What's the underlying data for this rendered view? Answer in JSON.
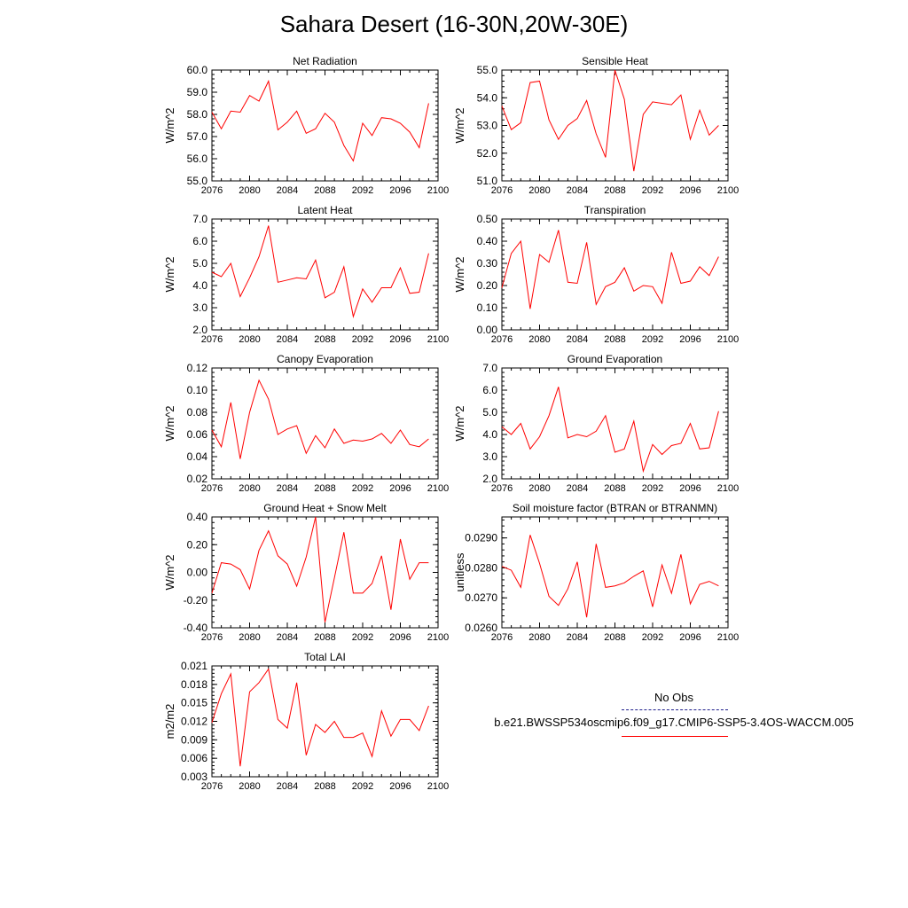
{
  "title": "Sahara Desert (16-30N,20W-30E)",
  "legend": {
    "obs_label": "No Obs",
    "model_label": "b.e21.BWSSP534oscmip6.f09_g17.CMIP6-SSP5-3.4OS-WACCM.005",
    "obs_color": "#1f1f8c",
    "model_color": "#ff0000"
  },
  "chart_data": [
    {
      "type": "line",
      "title": "Net Radiation",
      "ylabel": "W/m^2",
      "xlim": [
        2076,
        2100
      ],
      "ylim": [
        55.0,
        60.0
      ],
      "xticks": [
        "2076",
        "2080",
        "2084",
        "2088",
        "2092",
        "2096",
        "2100"
      ],
      "yticks": [
        "55.0",
        "56.0",
        "57.0",
        "58.0",
        "59.0",
        "60.0"
      ],
      "x": [
        2076,
        2077,
        2078,
        2079,
        2080,
        2081,
        2082,
        2083,
        2084,
        2085,
        2086,
        2087,
        2088,
        2089,
        2090,
        2091,
        2092,
        2093,
        2094,
        2095,
        2096,
        2097,
        2098,
        2099
      ],
      "series": [
        {
          "values": [
            58.1,
            57.35,
            58.15,
            58.1,
            58.85,
            58.6,
            59.5,
            57.3,
            57.65,
            58.15,
            57.15,
            57.35,
            58.05,
            57.65,
            56.6,
            55.9,
            57.6,
            57.05,
            57.85,
            57.8,
            57.6,
            57.2,
            56.5,
            58.5
          ]
        }
      ]
    },
    {
      "type": "line",
      "title": "Sensible Heat",
      "ylabel": "W/m^2",
      "xlim": [
        2076,
        2100
      ],
      "ylim": [
        51.0,
        55.0
      ],
      "xticks": [
        "2076",
        "2080",
        "2084",
        "2088",
        "2092",
        "2096",
        "2100"
      ],
      "yticks": [
        "51.0",
        "52.0",
        "53.0",
        "54.0",
        "55.0"
      ],
      "x": [
        2076,
        2077,
        2078,
        2079,
        2080,
        2081,
        2082,
        2083,
        2084,
        2085,
        2086,
        2087,
        2088,
        2089,
        2090,
        2091,
        2092,
        2093,
        2094,
        2095,
        2096,
        2097,
        2098,
        2099
      ],
      "series": [
        {
          "values": [
            53.7,
            52.85,
            53.1,
            54.55,
            54.6,
            53.2,
            52.5,
            53.0,
            53.25,
            53.9,
            52.7,
            51.85,
            55.0,
            53.95,
            51.35,
            53.4,
            53.85,
            53.8,
            53.75,
            54.1,
            52.5,
            53.55,
            52.65,
            53.0
          ]
        }
      ]
    },
    {
      "type": "line",
      "title": "Latent Heat",
      "ylabel": "W/m^2",
      "xlim": [
        2076,
        2100
      ],
      "ylim": [
        2.0,
        7.0
      ],
      "xticks": [
        "2076",
        "2080",
        "2084",
        "2088",
        "2092",
        "2096",
        "2100"
      ],
      "yticks": [
        "2.0",
        "3.0",
        "4.0",
        "5.0",
        "6.0",
        "7.0"
      ],
      "x": [
        2076,
        2077,
        2078,
        2079,
        2080,
        2081,
        2082,
        2083,
        2084,
        2085,
        2086,
        2087,
        2088,
        2089,
        2090,
        2091,
        2092,
        2093,
        2094,
        2095,
        2096,
        2097,
        2098,
        2099
      ],
      "series": [
        {
          "values": [
            4.6,
            4.4,
            5.0,
            3.5,
            4.35,
            5.3,
            6.7,
            4.15,
            4.25,
            4.35,
            4.3,
            5.15,
            3.45,
            3.7,
            4.85,
            2.6,
            3.85,
            3.25,
            3.9,
            3.9,
            4.8,
            3.65,
            3.7,
            5.45
          ]
        }
      ]
    },
    {
      "type": "line",
      "title": "Transpiration",
      "ylabel": "W/m^2",
      "xlim": [
        2076,
        2100
      ],
      "ylim": [
        0.0,
        0.5
      ],
      "xticks": [
        "2076",
        "2080",
        "2084",
        "2088",
        "2092",
        "2096",
        "2100"
      ],
      "yticks": [
        "0.00",
        "0.10",
        "0.20",
        "0.30",
        "0.40",
        "0.50"
      ],
      "x": [
        2076,
        2077,
        2078,
        2079,
        2080,
        2081,
        2082,
        2083,
        2084,
        2085,
        2086,
        2087,
        2088,
        2089,
        2090,
        2091,
        2092,
        2093,
        2094,
        2095,
        2096,
        2097,
        2098,
        2099
      ],
      "series": [
        {
          "values": [
            0.19,
            0.345,
            0.4,
            0.095,
            0.34,
            0.305,
            0.45,
            0.215,
            0.21,
            0.395,
            0.115,
            0.195,
            0.215,
            0.28,
            0.175,
            0.2,
            0.195,
            0.12,
            0.35,
            0.21,
            0.22,
            0.285,
            0.245,
            0.33
          ]
        }
      ]
    },
    {
      "type": "line",
      "title": "Canopy Evaporation",
      "ylabel": "W/m^2",
      "xlim": [
        2076,
        2100
      ],
      "ylim": [
        0.02,
        0.12
      ],
      "xticks": [
        "2076",
        "2080",
        "2084",
        "2088",
        "2092",
        "2096",
        "2100"
      ],
      "yticks": [
        "0.02",
        "0.04",
        "0.06",
        "0.08",
        "0.10",
        "0.12"
      ],
      "x": [
        2076,
        2077,
        2078,
        2079,
        2080,
        2081,
        2082,
        2083,
        2084,
        2085,
        2086,
        2087,
        2088,
        2089,
        2090,
        2091,
        2092,
        2093,
        2094,
        2095,
        2096,
        2097,
        2098,
        2099
      ],
      "series": [
        {
          "values": [
            0.064,
            0.049,
            0.089,
            0.038,
            0.08,
            0.109,
            0.092,
            0.06,
            0.065,
            0.068,
            0.043,
            0.059,
            0.048,
            0.065,
            0.052,
            0.055,
            0.054,
            0.056,
            0.061,
            0.052,
            0.064,
            0.051,
            0.049,
            0.056
          ]
        }
      ]
    },
    {
      "type": "line",
      "title": "Ground Evaporation",
      "ylabel": "W/m^2",
      "xlim": [
        2076,
        2100
      ],
      "ylim": [
        2.0,
        7.0
      ],
      "xticks": [
        "2076",
        "2080",
        "2084",
        "2088",
        "2092",
        "2096",
        "2100"
      ],
      "yticks": [
        "2.0",
        "3.0",
        "4.0",
        "5.0",
        "6.0",
        "7.0"
      ],
      "x": [
        2076,
        2077,
        2078,
        2079,
        2080,
        2081,
        2082,
        2083,
        2084,
        2085,
        2086,
        2087,
        2088,
        2089,
        2090,
        2091,
        2092,
        2093,
        2094,
        2095,
        2096,
        2097,
        2098,
        2099
      ],
      "series": [
        {
          "values": [
            4.35,
            4.0,
            4.5,
            3.35,
            3.9,
            4.85,
            6.15,
            3.85,
            4.0,
            3.9,
            4.15,
            4.85,
            3.2,
            3.35,
            4.6,
            2.35,
            3.55,
            3.1,
            3.5,
            3.6,
            4.5,
            3.35,
            3.4,
            5.05
          ]
        }
      ]
    },
    {
      "type": "line",
      "title": "Ground Heat + Snow Melt",
      "ylabel": "W/m^2",
      "xlim": [
        2076,
        2100
      ],
      "ylim": [
        -0.4,
        0.4
      ],
      "xticks": [
        "2076",
        "2080",
        "2084",
        "2088",
        "2092",
        "2096",
        "2100"
      ],
      "yticks": [
        "-0.40",
        "-0.20",
        "0.00",
        "0.20",
        "0.40"
      ],
      "x": [
        2076,
        2077,
        2078,
        2079,
        2080,
        2081,
        2082,
        2083,
        2084,
        2085,
        2086,
        2087,
        2088,
        2089,
        2090,
        2091,
        2092,
        2093,
        2094,
        2095,
        2096,
        2097,
        2098,
        2099
      ],
      "series": [
        {
          "values": [
            -0.15,
            0.07,
            0.06,
            0.02,
            -0.12,
            0.16,
            0.3,
            0.12,
            0.06,
            -0.1,
            0.11,
            0.4,
            -0.36,
            -0.04,
            0.29,
            -0.15,
            -0.15,
            -0.08,
            0.12,
            -0.27,
            0.24,
            -0.05,
            0.07,
            0.07
          ]
        }
      ]
    },
    {
      "type": "line",
      "title": "Soil moisture factor (BTRAN or BTRANMN)",
      "ylabel": "unitless",
      "xlim": [
        2076,
        2100
      ],
      "ylim": [
        0.026,
        0.0297
      ],
      "xticks": [
        "2076",
        "2080",
        "2084",
        "2088",
        "2092",
        "2096",
        "2100"
      ],
      "yticks": [
        "0.0260",
        "0.0270",
        "0.0280",
        "0.0290"
      ],
      "x": [
        2076,
        2077,
        2078,
        2079,
        2080,
        2081,
        2082,
        2083,
        2084,
        2085,
        2086,
        2087,
        2088,
        2089,
        2090,
        2091,
        2092,
        2093,
        2094,
        2095,
        2096,
        2097,
        2098,
        2099
      ],
      "series": [
        {
          "values": [
            0.02805,
            0.02792,
            0.02735,
            0.0291,
            0.02815,
            0.02705,
            0.02675,
            0.0273,
            0.0282,
            0.02635,
            0.0288,
            0.02735,
            0.0274,
            0.0275,
            0.02772,
            0.0279,
            0.0267,
            0.0281,
            0.02715,
            0.02845,
            0.0268,
            0.02745,
            0.02755,
            0.0274
          ]
        }
      ]
    },
    {
      "type": "line",
      "title": "Total LAI",
      "ylabel": "m2/m2",
      "xlim": [
        2076,
        2100
      ],
      "ylim": [
        0.003,
        0.021
      ],
      "xticks": [
        "2076",
        "2080",
        "2084",
        "2088",
        "2092",
        "2096",
        "2100"
      ],
      "yticks": [
        "0.003",
        "0.006",
        "0.009",
        "0.012",
        "0.015",
        "0.018",
        "0.021"
      ],
      "x": [
        2076,
        2077,
        2078,
        2079,
        2080,
        2081,
        2082,
        2083,
        2084,
        2085,
        2086,
        2087,
        2088,
        2089,
        2090,
        2091,
        2092,
        2093,
        2094,
        2095,
        2096,
        2097,
        2098,
        2099
      ],
      "series": [
        {
          "values": [
            0.0118,
            0.0165,
            0.0197,
            0.0047,
            0.0168,
            0.0183,
            0.0205,
            0.0123,
            0.0109,
            0.0183,
            0.0065,
            0.0115,
            0.0102,
            0.012,
            0.0094,
            0.0094,
            0.0101,
            0.0063,
            0.0137,
            0.0096,
            0.0123,
            0.0123,
            0.0105,
            0.0145
          ]
        }
      ]
    }
  ]
}
